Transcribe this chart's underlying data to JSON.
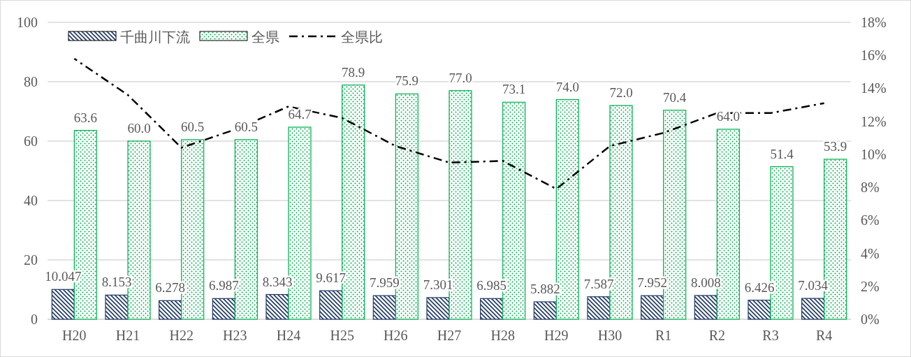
{
  "chart_data": {
    "type": "bar",
    "categories": [
      "H20",
      "H21",
      "H22",
      "H23",
      "H24",
      "H25",
      "H26",
      "H27",
      "H28",
      "H29",
      "H30",
      "R1",
      "R2",
      "R3",
      "R4"
    ],
    "series": [
      {
        "name": "千曲川下流",
        "color": "#1f3864",
        "values": [
          10.047,
          8.153,
          6.278,
          6.987,
          8.343,
          9.617,
          7.959,
          7.301,
          6.985,
          5.882,
          7.587,
          7.952,
          8.008,
          6.426,
          7.034
        ],
        "value_labels": [
          "10.047",
          "8.153",
          "6.278",
          "6.987",
          "8.343",
          "9.617",
          "7.959",
          "7.301",
          "6.985",
          "5.882",
          "7.587",
          "7.952",
          "8.008",
          "6.426",
          "7.034"
        ]
      },
      {
        "name": "全県",
        "color": "#00b050",
        "values": [
          63.6,
          60.0,
          60.5,
          60.5,
          64.7,
          78.9,
          75.9,
          77.0,
          73.1,
          74.0,
          72.0,
          70.4,
          64.0,
          51.4,
          53.9
        ],
        "value_labels": [
          "63.6",
          "60.0",
          "60.5",
          "60.5",
          "64.7",
          "78.9",
          "75.9",
          "77.0",
          "73.1",
          "74.0",
          "72.0",
          "70.4",
          "64.0",
          "51.4",
          "53.9"
        ]
      },
      {
        "name": "全県比",
        "type": "line",
        "axis": "y2",
        "color": "#000000",
        "line_style": "dashdot",
        "values": [
          15.8,
          13.6,
          10.4,
          11.5,
          12.9,
          12.2,
          10.5,
          9.5,
          9.6,
          7.9,
          10.5,
          11.3,
          12.5,
          12.5,
          13.1
        ]
      }
    ],
    "ylim": [
      0,
      100
    ],
    "yticks": [
      0,
      20,
      40,
      60,
      80,
      100
    ],
    "y2lim": [
      0,
      18
    ],
    "y2ticks": [
      {
        "value": 0,
        "label": "0%"
      },
      {
        "value": 2,
        "label": "2%"
      },
      {
        "value": 4,
        "label": "4%"
      },
      {
        "value": 6,
        "label": "6%"
      },
      {
        "value": 8,
        "label": "8%"
      },
      {
        "value": 10,
        "label": "10%"
      },
      {
        "value": 12,
        "label": "12%"
      },
      {
        "value": 14,
        "label": "14%"
      },
      {
        "value": 16,
        "label": "16%"
      },
      {
        "value": 18,
        "label": "18%"
      }
    ],
    "grid": "y",
    "legend": "top left",
    "marker": "none"
  }
}
